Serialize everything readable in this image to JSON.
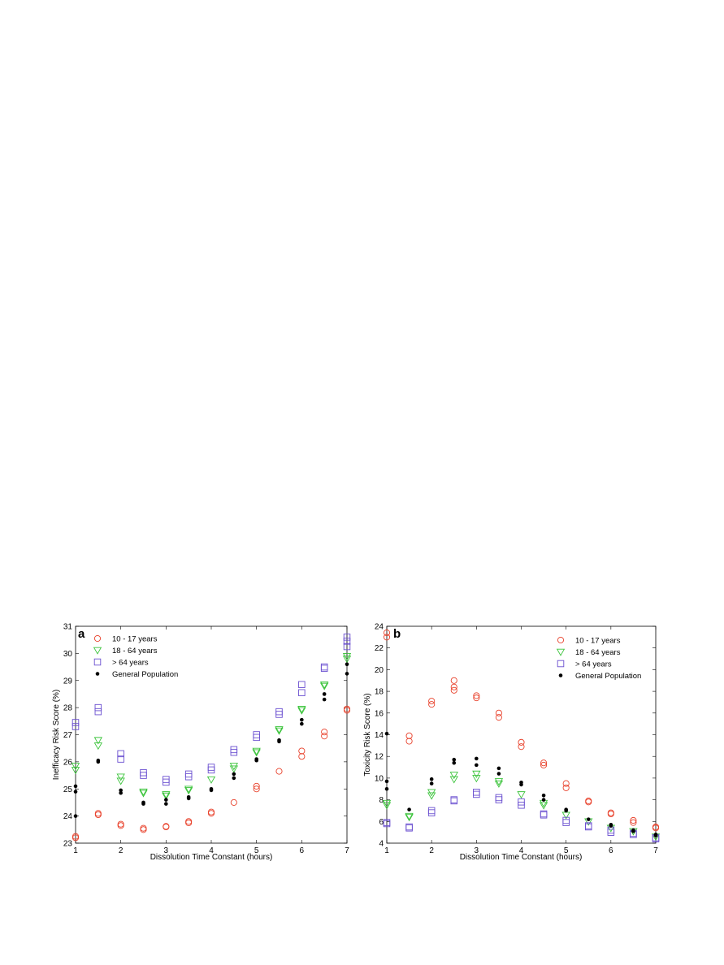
{
  "chart_data": [
    {
      "type": "scatter",
      "panel_label": "a",
      "xlabel": "Dissolution Time Constant (hours)",
      "ylabel": "Inefficacy Risk Score (%)",
      "xlim": [
        1,
        7
      ],
      "ylim": [
        23,
        31
      ],
      "xticks": [
        1,
        2,
        3,
        4,
        5,
        6,
        7
      ],
      "yticks": [
        23,
        24,
        25,
        26,
        27,
        28,
        29,
        30,
        31
      ],
      "grid": false,
      "legend_position": "top-left",
      "series": [
        {
          "name": "10 - 17 years",
          "marker": "circle",
          "color": "#e8402a",
          "points": [
            [
              1,
              23.2
            ],
            [
              1,
              23.25
            ],
            [
              1.5,
              24.05
            ],
            [
              1.5,
              24.1
            ],
            [
              2,
              23.65
            ],
            [
              2,
              23.7
            ],
            [
              2.5,
              23.5
            ],
            [
              2.5,
              23.55
            ],
            [
              3,
              23.6
            ],
            [
              3,
              23.62
            ],
            [
              3.5,
              23.75
            ],
            [
              3.5,
              23.8
            ],
            [
              4,
              24.1
            ],
            [
              4,
              24.15
            ],
            [
              4.5,
              24.5
            ],
            [
              5,
              25.0
            ],
            [
              5,
              25.1
            ],
            [
              5.5,
              25.65
            ],
            [
              6,
              26.2
            ],
            [
              6,
              26.4
            ],
            [
              6.5,
              26.95
            ],
            [
              6.5,
              27.1
            ],
            [
              7,
              27.9
            ],
            [
              7,
              27.95
            ]
          ]
        },
        {
          "name": "18 - 64 years",
          "marker": "triangle-down",
          "color": "#3cc43c",
          "points": [
            [
              1,
              25.7
            ],
            [
              1,
              25.85
            ],
            [
              1.5,
              26.6
            ],
            [
              1.5,
              26.8
            ],
            [
              2,
              25.3
            ],
            [
              2,
              25.45
            ],
            [
              2.5,
              24.85
            ],
            [
              2.5,
              24.9
            ],
            [
              3,
              24.75
            ],
            [
              3,
              24.8
            ],
            [
              3.5,
              24.95
            ],
            [
              3.5,
              25.0
            ],
            [
              4,
              25.35
            ],
            [
              4.5,
              25.75
            ],
            [
              4.5,
              25.85
            ],
            [
              5,
              26.35
            ],
            [
              5,
              26.4
            ],
            [
              5.5,
              27.15
            ],
            [
              5.5,
              27.2
            ],
            [
              6,
              27.9
            ],
            [
              6,
              27.95
            ],
            [
              6.5,
              28.8
            ],
            [
              6.5,
              28.85
            ],
            [
              7,
              29.8
            ],
            [
              7,
              29.9
            ]
          ]
        },
        {
          "name": "> 64 years",
          "marker": "square",
          "color": "#6a4fd0",
          "points": [
            [
              1,
              27.3
            ],
            [
              1,
              27.45
            ],
            [
              1.5,
              27.85
            ],
            [
              1.5,
              28.0
            ],
            [
              2,
              26.1
            ],
            [
              2,
              26.3
            ],
            [
              2.5,
              25.5
            ],
            [
              2.5,
              25.6
            ],
            [
              3,
              25.25
            ],
            [
              3,
              25.35
            ],
            [
              3.5,
              25.45
            ],
            [
              3.5,
              25.55
            ],
            [
              4,
              25.7
            ],
            [
              4,
              25.8
            ],
            [
              4.5,
              26.35
            ],
            [
              4.5,
              26.45
            ],
            [
              5,
              26.9
            ],
            [
              5,
              27.0
            ],
            [
              5.5,
              27.75
            ],
            [
              5.5,
              27.85
            ],
            [
              6,
              28.55
            ],
            [
              6,
              28.85
            ],
            [
              6.5,
              29.45
            ],
            [
              6.5,
              29.5
            ],
            [
              7,
              30.25
            ],
            [
              7,
              30.45
            ],
            [
              7,
              30.6
            ]
          ]
        },
        {
          "name": "General Population",
          "marker": "dot",
          "color": "#000000",
          "points": [
            [
              1,
              24.0
            ],
            [
              1,
              24.9
            ],
            [
              1,
              25.1
            ],
            [
              1.5,
              26.0
            ],
            [
              1.5,
              26.05
            ],
            [
              2,
              24.85
            ],
            [
              2,
              24.95
            ],
            [
              2.5,
              24.45
            ],
            [
              2.5,
              24.5
            ],
            [
              3,
              24.45
            ],
            [
              3,
              24.6
            ],
            [
              3.5,
              24.65
            ],
            [
              3.5,
              24.7
            ],
            [
              4,
              24.95
            ],
            [
              4,
              25.0
            ],
            [
              4.5,
              25.4
            ],
            [
              4.5,
              25.55
            ],
            [
              5,
              26.05
            ],
            [
              5,
              26.1
            ],
            [
              5.5,
              26.75
            ],
            [
              5.5,
              26.8
            ],
            [
              6,
              27.4
            ],
            [
              6,
              27.55
            ],
            [
              6.5,
              28.3
            ],
            [
              6.5,
              28.5
            ],
            [
              7,
              29.25
            ],
            [
              7,
              29.6
            ]
          ]
        }
      ]
    },
    {
      "type": "scatter",
      "panel_label": "b",
      "xlabel": "Dissolution Time Constant (hours)",
      "ylabel": "Toxicity Risk Score (%)",
      "xlim": [
        1,
        7
      ],
      "ylim": [
        4,
        24
      ],
      "xticks": [
        1,
        2,
        3,
        4,
        5,
        6,
        7
      ],
      "yticks": [
        4,
        6,
        8,
        10,
        12,
        14,
        16,
        18,
        20,
        22,
        24
      ],
      "grid": false,
      "legend_position": "top-right",
      "series": [
        {
          "name": "10 - 17 years",
          "marker": "circle",
          "color": "#e8402a",
          "points": [
            [
              1,
              23.0
            ],
            [
              1,
              23.4
            ],
            [
              1.5,
              13.4
            ],
            [
              1.5,
              13.9
            ],
            [
              2,
              16.8
            ],
            [
              2,
              17.1
            ],
            [
              2.5,
              18.1
            ],
            [
              2.5,
              18.4
            ],
            [
              2.5,
              19.0
            ],
            [
              3,
              17.4
            ],
            [
              3,
              17.6
            ],
            [
              3.5,
              15.6
            ],
            [
              3.5,
              16.0
            ],
            [
              4,
              12.9
            ],
            [
              4,
              13.3
            ],
            [
              4.5,
              11.2
            ],
            [
              4.5,
              11.4
            ],
            [
              5,
              9.1
            ],
            [
              5,
              9.5
            ],
            [
              5.5,
              7.8
            ],
            [
              5.5,
              7.9
            ],
            [
              6,
              6.7
            ],
            [
              6,
              6.8
            ],
            [
              6.5,
              5.9
            ],
            [
              6.5,
              6.1
            ],
            [
              7,
              5.4
            ],
            [
              7,
              5.5
            ]
          ]
        },
        {
          "name": "18 - 64 years",
          "marker": "triangle-down",
          "color": "#3cc43c",
          "points": [
            [
              1,
              7.5
            ],
            [
              1,
              7.7
            ],
            [
              1.5,
              6.4
            ],
            [
              1.5,
              6.5
            ],
            [
              2,
              8.4
            ],
            [
              2,
              8.7
            ],
            [
              2.5,
              9.9
            ],
            [
              2.5,
              10.3
            ],
            [
              3,
              10.0
            ],
            [
              3,
              10.4
            ],
            [
              3.5,
              9.5
            ],
            [
              3.5,
              9.7
            ],
            [
              4,
              8.5
            ],
            [
              4.5,
              7.5
            ],
            [
              4.5,
              7.7
            ],
            [
              5,
              6.6
            ],
            [
              5.5,
              6.0
            ],
            [
              6,
              5.4
            ],
            [
              6.5,
              5.1
            ],
            [
              7,
              4.6
            ]
          ]
        },
        {
          "name": "> 64 years",
          "marker": "square",
          "color": "#6a4fd0",
          "points": [
            [
              1,
              5.8
            ],
            [
              1,
              5.9
            ],
            [
              1.5,
              5.4
            ],
            [
              1.5,
              5.5
            ],
            [
              2,
              6.8
            ],
            [
              2,
              7.0
            ],
            [
              2.5,
              7.9
            ],
            [
              2.5,
              8.0
            ],
            [
              3,
              8.5
            ],
            [
              3,
              8.7
            ],
            [
              3.5,
              8.0
            ],
            [
              3.5,
              8.2
            ],
            [
              4,
              7.5
            ],
            [
              4,
              7.8
            ],
            [
              4.5,
              6.6
            ],
            [
              4.5,
              6.7
            ],
            [
              5,
              5.9
            ],
            [
              5,
              6.1
            ],
            [
              5.5,
              5.5
            ],
            [
              5.5,
              5.6
            ],
            [
              6,
              5.0
            ],
            [
              6,
              5.2
            ],
            [
              6.5,
              4.8
            ],
            [
              6.5,
              4.9
            ],
            [
              7,
              4.4
            ],
            [
              7,
              4.5
            ]
          ]
        },
        {
          "name": "General Population",
          "marker": "dot",
          "color": "#000000",
          "points": [
            [
              1,
              9.0
            ],
            [
              1,
              9.7
            ],
            [
              1,
              14.1
            ],
            [
              1.5,
              7.1
            ],
            [
              2,
              9.5
            ],
            [
              2,
              9.9
            ],
            [
              2.5,
              11.4
            ],
            [
              2.5,
              11.7
            ],
            [
              3,
              11.2
            ],
            [
              3,
              11.8
            ],
            [
              3.5,
              10.4
            ],
            [
              3.5,
              10.9
            ],
            [
              4,
              9.4
            ],
            [
              4,
              9.6
            ],
            [
              4.5,
              8.0
            ],
            [
              4.5,
              8.4
            ],
            [
              5,
              7.0
            ],
            [
              5,
              7.1
            ],
            [
              5.5,
              6.2
            ],
            [
              6,
              5.6
            ],
            [
              6,
              5.7
            ],
            [
              6.5,
              5.1
            ],
            [
              6.5,
              5.2
            ],
            [
              7,
              4.7
            ],
            [
              7,
              4.8
            ]
          ]
        }
      ]
    }
  ]
}
